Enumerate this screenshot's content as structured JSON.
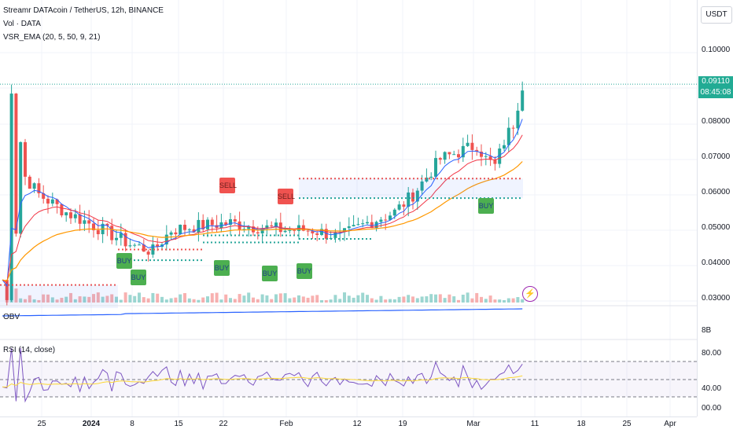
{
  "legend": {
    "symbol": "Streamr DATAcoin / TetherUS, 12h, BINANCE",
    "volume": "Vol · DATA",
    "vsr_ema": "VSR_EMA (20, 5, 50, 9, 21)",
    "obv": "OBV",
    "rsi": "RSI (14, close)"
  },
  "price_axis": {
    "currency": "USDT",
    "labels": [
      "0.10000",
      "0.08000",
      "0.07000",
      "0.06000",
      "0.05000",
      "0.04000",
      "0.03000"
    ],
    "last_price": "0.09110",
    "countdown": "08:45:08",
    "obv_label": "8B",
    "rsi_labels": [
      "80.00",
      "40.00",
      "00.00"
    ]
  },
  "time_axis": {
    "labels": [
      "25",
      "2024",
      "8",
      "15",
      "22",
      "Feb",
      "12",
      "19",
      "Mar",
      "11",
      "18",
      "25",
      "Apr"
    ]
  },
  "signals": {
    "buy_label": "BUY",
    "sell_label": "SELL"
  },
  "colors": {
    "up": "#26a69a",
    "down": "#ef5350",
    "ema_fast": "#2962ff",
    "ema_mid": "#f23645",
    "ema_slow": "#ff9800",
    "obv": "#2962ff",
    "rsi": "#7e57c2",
    "rsi_ma": "#fdd835",
    "bolt": "#9c27b0"
  },
  "icons": {
    "alert": "lightning-icon"
  },
  "chart_data": {
    "type": "candlestick",
    "x": [
      "Dec 19",
      "Mar 10"
    ],
    "price_range": [
      0.025,
      0.105
    ],
    "last_price": 0.0911,
    "rsi_levels": [
      70,
      50,
      30
    ]
  }
}
